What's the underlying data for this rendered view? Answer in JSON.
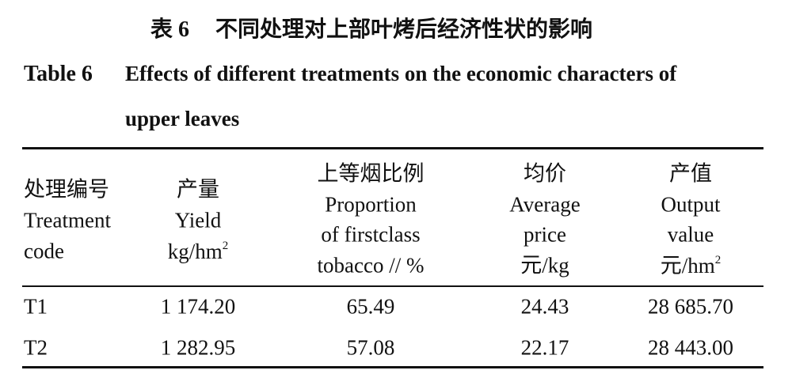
{
  "title_zh": {
    "label": "表 6",
    "text": "不同处理对上部叶烤后经济性状的影响"
  },
  "title_en": {
    "label": "Table 6",
    "lines": [
      "Effects of different treatments on the economic characters of",
      "upper leaves"
    ]
  },
  "table": {
    "header": [
      {
        "lines": [
          "处理编号",
          "Treatment",
          "code"
        ]
      },
      {
        "lines": [
          "产量",
          "Yield",
          "kg/hm"
        ],
        "sup": "2"
      },
      {
        "lines": [
          "上等烟比例",
          "Proportion",
          "of firstclass",
          "tobacco // %"
        ]
      },
      {
        "lines": [
          "均价",
          "Average",
          "price",
          "元/kg"
        ]
      },
      {
        "lines": [
          "产值",
          "Output",
          "value",
          "元/hm"
        ],
        "sup": "2"
      }
    ],
    "rows": [
      [
        "T1",
        "1 174.20",
        "65.49",
        "24.43",
        "28 685.70"
      ],
      [
        "T2",
        "1 282.95",
        "57.08",
        "22.17",
        "28 443.00"
      ]
    ]
  }
}
